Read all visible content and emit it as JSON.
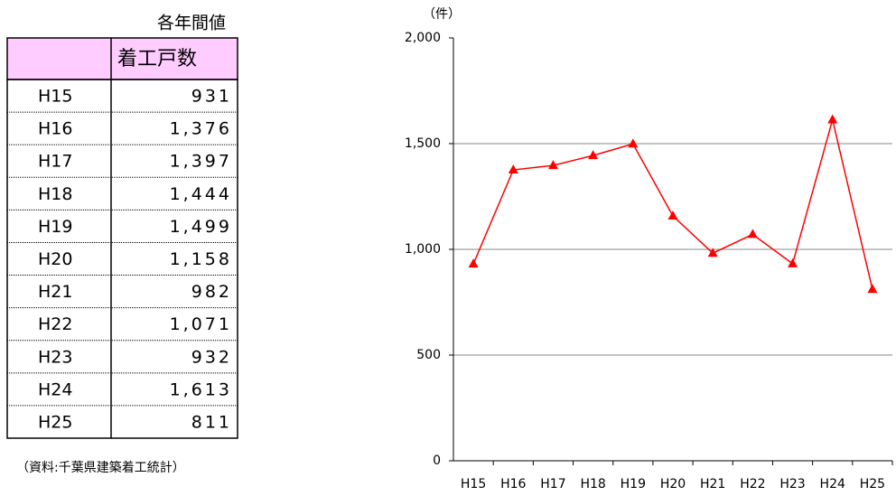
{
  "table": {
    "title": "各年間値",
    "header": "着工戸数",
    "rows": [
      [
        "H15",
        "931"
      ],
      [
        "H16",
        "1,376"
      ],
      [
        "H17",
        "1,397"
      ],
      [
        "H18",
        "1,444"
      ],
      [
        "H19",
        "1,499"
      ],
      [
        "H20",
        "1,158"
      ],
      [
        "H21",
        "982"
      ],
      [
        "H22",
        "1,071"
      ],
      [
        "H23",
        "932"
      ],
      [
        "H24",
        "1,613"
      ],
      [
        "H25",
        "811"
      ]
    ]
  },
  "source": "（資料:千葉県建築着工統計）",
  "chart_data": {
    "type": "line",
    "y_label": "（件）",
    "categories": [
      "H15",
      "H16",
      "H17",
      "H18",
      "H19",
      "H20",
      "H21",
      "H22",
      "H23",
      "H24",
      "H25"
    ],
    "values": [
      931,
      1376,
      1397,
      1444,
      1499,
      1158,
      982,
      1071,
      932,
      1613,
      811
    ],
    "color": "#ff0000",
    "marker": "triangle",
    "ylim": [
      0,
      2000
    ],
    "yticks": [
      0,
      500,
      {
        "value": 1000,
        "label": "1,000"
      },
      {
        "value": 1500,
        "label": "1,500"
      },
      {
        "value": 2000,
        "label": "2,000"
      }
    ],
    "grid": true
  }
}
